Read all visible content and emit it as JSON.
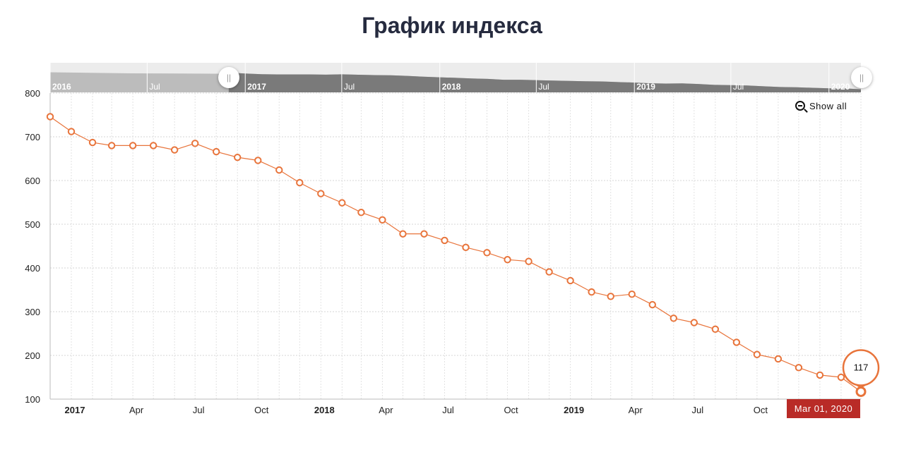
{
  "title": "График индекса",
  "show_all_label": "Show all",
  "navigator": {
    "labels": [
      "2016",
      "Jul",
      "2017",
      "Jul",
      "2018",
      "Jul",
      "2019",
      "Jul",
      "2020"
    ]
  },
  "tooltip": {
    "value_label": "117",
    "date_label": "Mar 01, 2020"
  },
  "colors": {
    "line": "#e8743b",
    "title": "#262b3f",
    "badge": "#b92b27"
  },
  "chart_data": {
    "type": "line",
    "title": "График индекса",
    "xlabel": "",
    "ylabel": "",
    "ylim": [
      100,
      800
    ],
    "yticks": [
      100,
      200,
      300,
      400,
      500,
      600,
      700,
      800
    ],
    "xtick_labels": [
      {
        "label": "2017",
        "date": "2017-01-01",
        "bold": true
      },
      {
        "label": "Apr",
        "date": "2017-04-01",
        "bold": false
      },
      {
        "label": "Jul",
        "date": "2017-07-01",
        "bold": false
      },
      {
        "label": "Oct",
        "date": "2017-10-01",
        "bold": false
      },
      {
        "label": "2018",
        "date": "2018-01-01",
        "bold": true
      },
      {
        "label": "Apr",
        "date": "2018-04-01",
        "bold": false
      },
      {
        "label": "Jul",
        "date": "2018-07-01",
        "bold": false
      },
      {
        "label": "Oct",
        "date": "2018-10-01",
        "bold": false
      },
      {
        "label": "2019",
        "date": "2019-01-01",
        "bold": true
      },
      {
        "label": "Apr",
        "date": "2019-04-01",
        "bold": false
      },
      {
        "label": "Jul",
        "date": "2019-07-01",
        "bold": false
      },
      {
        "label": "Oct",
        "date": "2019-10-01",
        "bold": false
      }
    ],
    "grid": true,
    "series": [
      {
        "x": [
          "2016-12-01",
          "2017-01-01",
          "2017-02-01",
          "2017-03-01",
          "2017-04-01",
          "2017-05-01",
          "2017-06-01",
          "2017-07-01",
          "2017-08-01",
          "2017-09-01",
          "2017-10-01",
          "2017-11-01",
          "2017-12-01",
          "2018-01-01",
          "2018-02-01",
          "2018-03-01",
          "2018-04-01",
          "2018-05-01",
          "2018-06-01",
          "2018-07-01",
          "2018-08-01",
          "2018-09-01",
          "2018-10-01",
          "2018-11-01",
          "2018-12-01",
          "2019-01-01",
          "2019-02-01",
          "2019-03-01",
          "2019-04-01",
          "2019-05-01",
          "2019-06-01",
          "2019-07-01",
          "2019-08-01",
          "2019-09-01",
          "2019-10-01",
          "2019-11-01",
          "2019-12-01",
          "2020-01-01",
          "2020-02-01",
          "2020-03-01"
        ],
        "values": [
          746,
          712,
          687,
          680,
          680,
          680,
          670,
          685,
          666,
          653,
          646,
          624,
          595,
          570,
          549,
          527,
          510,
          478,
          478,
          463,
          447,
          435,
          419,
          415,
          391,
          371,
          345,
          335,
          340,
          316,
          285,
          275,
          260,
          230,
          202,
          192,
          172,
          155,
          150,
          117
        ]
      }
    ]
  }
}
